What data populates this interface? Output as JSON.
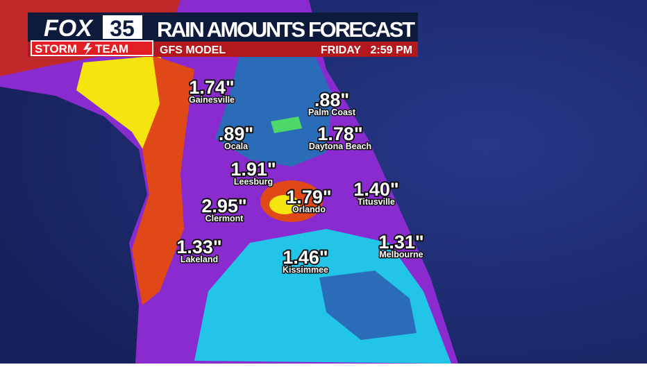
{
  "header": {
    "logo": {
      "network": "FOX",
      "channel": "35",
      "brand_left": "STORM",
      "brand_right": "TEAM"
    },
    "title": "RAIN AMOUNTS FORECAST",
    "model": "GFS MODEL",
    "day": "FRIDAY",
    "time": "2:59 PM"
  },
  "locations": [
    {
      "amount": "1.74\"",
      "city": "Gainesville"
    },
    {
      "amount": ".88\"",
      "city": "Palm Coast"
    },
    {
      "amount": ".89\"",
      "city": "Ocala"
    },
    {
      "amount": "1.78\"",
      "city": "Daytona Beach"
    },
    {
      "amount": "1.91\"",
      "city": "Leesburg"
    },
    {
      "amount": "1.79\"",
      "city": "Orlando"
    },
    {
      "amount": "1.40\"",
      "city": "Titusville"
    },
    {
      "amount": "2.95\"",
      "city": "Clermont"
    },
    {
      "amount": "1.33\"",
      "city": "Lakeland"
    },
    {
      "amount": "1.31\"",
      "city": "Melbourne"
    },
    {
      "amount": "1.46\"",
      "city": "Kissimmee"
    }
  ]
}
